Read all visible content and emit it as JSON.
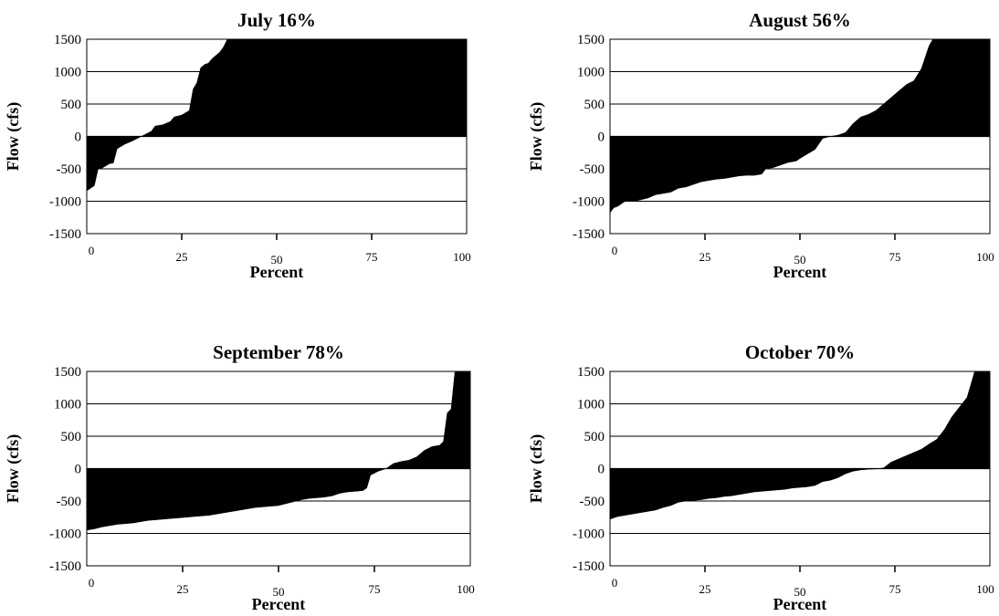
{
  "chart_data": [
    {
      "type": "area",
      "title": "July 16%",
      "xlabel": "Percent",
      "ylabel": "Flow (cfs)",
      "xlim": [
        0,
        100
      ],
      "ylim": [
        -1500,
        1500
      ],
      "yticks": [
        1500,
        1000,
        500,
        0,
        -500,
        -1000,
        -1500
      ],
      "xticks": [
        0,
        25,
        50,
        75,
        100
      ],
      "grid": true,
      "series": [
        {
          "x": [
            0,
            2,
            3,
            4,
            6,
            7,
            8,
            10,
            12,
            14,
            15,
            17,
            18,
            20,
            22,
            23,
            25,
            27,
            28,
            29,
            30,
            31,
            32,
            33,
            34,
            35,
            36,
            37,
            100
          ],
          "y": [
            -840,
            -760,
            -500,
            -490,
            -420,
            -410,
            -190,
            -120,
            -70,
            -10,
            20,
            80,
            160,
            180,
            230,
            300,
            330,
            400,
            730,
            830,
            1060,
            1110,
            1130,
            1200,
            1250,
            1300,
            1380,
            1500,
            1500
          ]
        }
      ]
    },
    {
      "type": "area",
      "title": "August 56%",
      "xlabel": "Percent",
      "ylabel": "Flow (cfs)",
      "xlim": [
        0,
        100
      ],
      "ylim": [
        -1500,
        1500
      ],
      "yticks": [
        1500,
        1000,
        500,
        0,
        -500,
        -1000,
        -1500
      ],
      "xticks": [
        0,
        25,
        50,
        75,
        100
      ],
      "grid": true,
      "series": [
        {
          "x": [
            0,
            1,
            2,
            4,
            6,
            8,
            10,
            12,
            14,
            16,
            18,
            20,
            22,
            24,
            26,
            28,
            30,
            32,
            34,
            36,
            38,
            40,
            41,
            43,
            45,
            47,
            49,
            50,
            52,
            54,
            56,
            58,
            60,
            62,
            64,
            66,
            68,
            70,
            72,
            74,
            76,
            78,
            80,
            82,
            84,
            85,
            100
          ],
          "y": [
            -1180,
            -1100,
            -1080,
            -1000,
            -1000,
            -980,
            -950,
            -900,
            -880,
            -860,
            -800,
            -780,
            -740,
            -700,
            -680,
            -660,
            -650,
            -630,
            -610,
            -600,
            -600,
            -580,
            -500,
            -480,
            -440,
            -400,
            -380,
            -340,
            -270,
            -200,
            -30,
            0,
            20,
            60,
            200,
            300,
            340,
            400,
            500,
            600,
            700,
            800,
            860,
            1050,
            1400,
            1500,
            1500
          ]
        }
      ]
    },
    {
      "type": "area",
      "title": "September 78%",
      "xlabel": "Percent",
      "ylabel": "Flow (cfs)",
      "xlim": [
        0,
        100
      ],
      "ylim": [
        -1500,
        1500
      ],
      "yticks": [
        1500,
        1000,
        500,
        0,
        -500,
        -1000,
        -1500
      ],
      "xticks": [
        0,
        25,
        50,
        75,
        100
      ],
      "grid": true,
      "series": [
        {
          "x": [
            0,
            2,
            4,
            6,
            8,
            10,
            12,
            14,
            16,
            18,
            20,
            22,
            24,
            26,
            28,
            30,
            32,
            34,
            36,
            38,
            40,
            42,
            44,
            46,
            48,
            50,
            52,
            54,
            56,
            58,
            60,
            62,
            64,
            66,
            68,
            70,
            72,
            73,
            74,
            76,
            78,
            80,
            82,
            84,
            86,
            88,
            90,
            92,
            93,
            94,
            95,
            96,
            100
          ],
          "y": [
            -950,
            -930,
            -900,
            -880,
            -860,
            -850,
            -840,
            -820,
            -800,
            -790,
            -780,
            -770,
            -760,
            -750,
            -740,
            -730,
            -720,
            -700,
            -680,
            -660,
            -640,
            -620,
            -600,
            -590,
            -580,
            -570,
            -540,
            -510,
            -480,
            -460,
            -450,
            -440,
            -420,
            -380,
            -360,
            -350,
            -340,
            -300,
            -100,
            -40,
            0,
            80,
            110,
            130,
            180,
            280,
            340,
            360,
            420,
            860,
            920,
            1500,
            1500
          ]
        }
      ]
    },
    {
      "type": "area",
      "title": "October 70%",
      "xlabel": "Percent",
      "ylabel": "Flow (cfs)",
      "xlim": [
        0,
        100
      ],
      "ylim": [
        -1500,
        1500
      ],
      "yticks": [
        1500,
        1000,
        500,
        0,
        -500,
        -1000,
        -1500
      ],
      "xticks": [
        0,
        25,
        50,
        75,
        100
      ],
      "grid": true,
      "series": [
        {
          "x": [
            0,
            2,
            4,
            6,
            8,
            10,
            12,
            14,
            16,
            18,
            20,
            22,
            24,
            26,
            28,
            30,
            32,
            34,
            36,
            38,
            40,
            42,
            44,
            46,
            48,
            50,
            52,
            54,
            56,
            58,
            60,
            62,
            64,
            66,
            68,
            70,
            72,
            74,
            76,
            78,
            80,
            82,
            84,
            86,
            88,
            90,
            92,
            94,
            95,
            96,
            100
          ],
          "y": [
            -780,
            -740,
            -720,
            -700,
            -680,
            -660,
            -640,
            -600,
            -570,
            -520,
            -500,
            -490,
            -480,
            -460,
            -450,
            -430,
            -420,
            -400,
            -380,
            -360,
            -350,
            -340,
            -330,
            -320,
            -300,
            -290,
            -280,
            -260,
            -200,
            -180,
            -140,
            -80,
            -40,
            -20,
            -10,
            -5,
            10,
            100,
            150,
            200,
            250,
            300,
            380,
            450,
            600,
            800,
            950,
            1100,
            1300,
            1500,
            1500
          ]
        }
      ]
    }
  ]
}
